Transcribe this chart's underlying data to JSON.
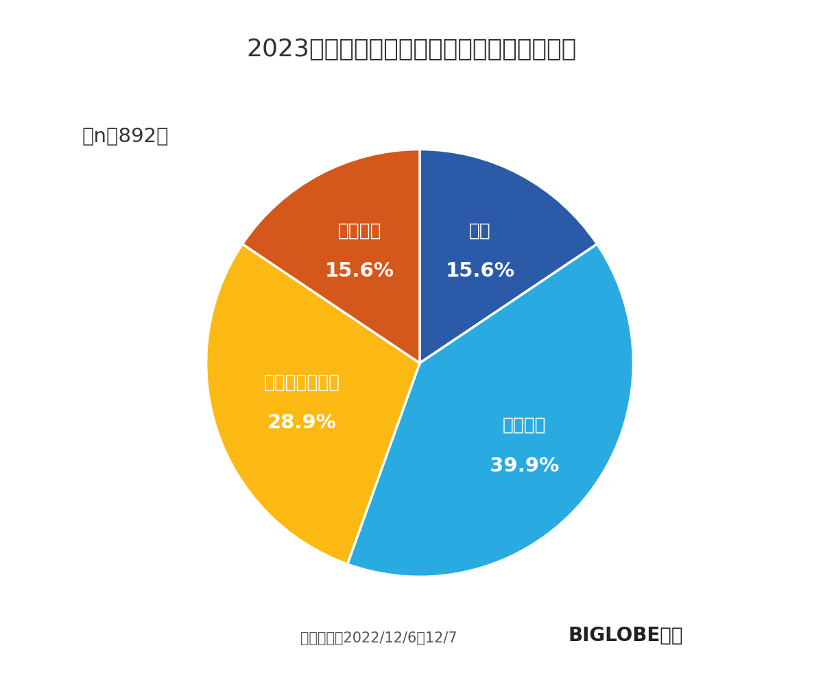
{
  "title": "2023年リスキリングに取り組みたいと思うか",
  "n_label": "（n＝892）",
  "labels": [
    "思う",
    "やや思う",
    "あまり思わない",
    "思わない"
  ],
  "values": [
    15.6,
    39.9,
    28.9,
    15.6
  ],
  "colors": [
    "#2B5BA8",
    "#29ABE2",
    "#FDB913",
    "#D4571B"
  ],
  "start_angle": 90,
  "background_color": "#FFFFFF",
  "footer_survey": "調査期間：2022/12/6～12/7",
  "footer_brand": "BIGLOBE調べ",
  "title_fontsize": 26,
  "label_fontsize": 19,
  "pct_fontsize": 21,
  "n_fontsize": 21,
  "footer_fontsize": 15,
  "footer_brand_fontsize": 20,
  "edge_color": "#FFFFFF",
  "text_color": "#333333",
  "footer_color": "#555555",
  "brand_color": "#222222"
}
